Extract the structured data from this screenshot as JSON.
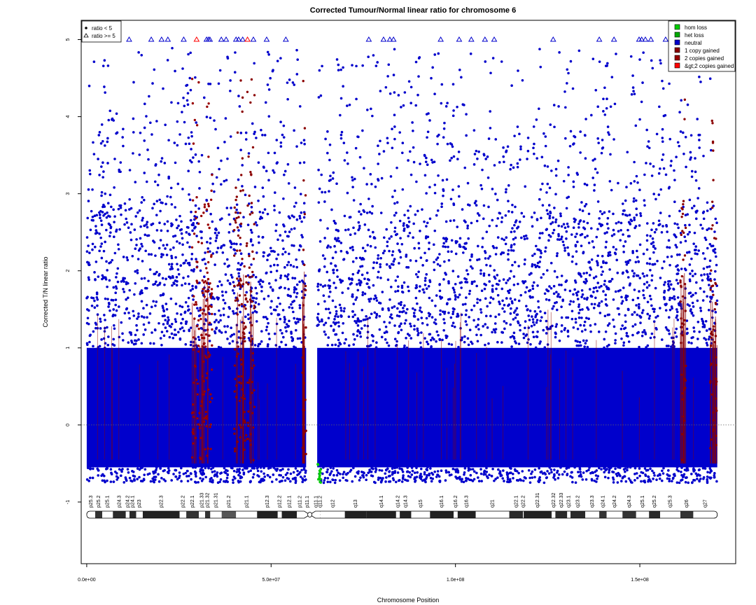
{
  "chart_data": {
    "type": "scatter",
    "title": "Corrected Tumour/Normal linear ratio for chromosome  6",
    "xlabel": "Chromosome Position",
    "ylabel": "Corrected T/N linear ratio",
    "xlim": [
      -1500000,
      176000000
    ],
    "ylim": [
      -1.8,
      5.25
    ],
    "x_ticks": [
      0,
      50000000,
      100000000,
      150000000
    ],
    "x_tick_labels": [
      "0.0e+00",
      "5.0e+07",
      "1.0e+08",
      "1.5e+08"
    ],
    "y_ticks": [
      -1,
      0,
      1,
      2,
      3,
      4,
      5
    ],
    "y_tick_labels": [
      "-1",
      "0",
      "1",
      "2",
      "3",
      "4",
      "5"
    ],
    "reference_line_y": 0,
    "chromosome_length": 171000000,
    "centromere": [
      59000000,
      62000000
    ],
    "data_gap": [
      59500000,
      62500000
    ],
    "cap_value": 5,
    "shape_legend": {
      "position": "top-left",
      "items": [
        {
          "symbol": "dot",
          "label": "ratio < 5"
        },
        {
          "symbol": "triangle",
          "label": "ratio >= 5"
        }
      ]
    },
    "color_legend": {
      "position": "top-right",
      "items": [
        {
          "label": "hom loss",
          "color": "#00cc00"
        },
        {
          "label": "het loss",
          "color": "#00aa00"
        },
        {
          "label": "neutral",
          "color": "#0000cc"
        },
        {
          "label": "1 copy gained",
          "color": "#8b0000"
        },
        {
          "label": "2 copies gained",
          "color": "#990000"
        },
        {
          "label": "&gt;2 copies gained",
          "color": "#ff0000"
        }
      ]
    },
    "gain_regions": [
      {
        "range": [
          28500000,
          34000000
        ],
        "level": "2 copies gained"
      },
      {
        "range": [
          40000000,
          45500000
        ],
        "level": "1 copy gained"
      },
      {
        "range": [
          58500000,
          59500000
        ],
        "level": "&gt;2 copies gained"
      },
      {
        "range": [
          161000000,
          162500000
        ],
        "level": "&gt;2 copies gained"
      },
      {
        "range": [
          169000000,
          171000000
        ],
        "level": "&gt;2 copies gained"
      }
    ],
    "loss_regions": [
      {
        "range": [
          62500000,
          63500000
        ],
        "level": "hom loss"
      }
    ],
    "capped_points_x": [
      0.5,
      2.0,
      2.8,
      3.4,
      11.5,
      17.5,
      20.3,
      22.0,
      26.3,
      29.8,
      32.5,
      33.0,
      33.4,
      36.5,
      37.8,
      40.5,
      41.2,
      42.3,
      43.6,
      45.2,
      48.8,
      54.0,
      76.5,
      80.5,
      82.2,
      83.2,
      96.0,
      101.0,
      104.3,
      108.0,
      110.5,
      126.5,
      139.0,
      143.0,
      149.8,
      150.5,
      151.5,
      153.0,
      157.0,
      158.5,
      159.0,
      160.5,
      162.0,
      164.5,
      166.0,
      167.5,
      168.5,
      170.5
    ],
    "capped_red_points_x": [
      29.8,
      43.6
    ],
    "bands": [
      {
        "label": "p25.3",
        "start": 0,
        "end": 2.3
      },
      {
        "label": "p25.2",
        "start": 2.3,
        "end": 4.2
      },
      {
        "label": "p25.1",
        "start": 4.2,
        "end": 7.1
      },
      {
        "label": "p24.3",
        "start": 7.1,
        "end": 10.6
      },
      {
        "label": "p24.2",
        "start": 10.6,
        "end": 11.6
      },
      {
        "label": "p24.1",
        "start": 11.6,
        "end": 13.4
      },
      {
        "label": "p23",
        "start": 13.4,
        "end": 15.2
      },
      {
        "label": "p22.3",
        "start": 15.2,
        "end": 25.2
      },
      {
        "label": "p22.2",
        "start": 25.2,
        "end": 27.0
      },
      {
        "label": "p22.1",
        "start": 27.0,
        "end": 30.4
      },
      {
        "label": "p21.33",
        "start": 30.4,
        "end": 32.1
      },
      {
        "label": "p21.32",
        "start": 32.1,
        "end": 33.5
      },
      {
        "label": "p21.31",
        "start": 33.5,
        "end": 36.6
      },
      {
        "label": "p21.2",
        "start": 36.6,
        "end": 40.5
      },
      {
        "label": "p21.1",
        "start": 40.5,
        "end": 46.2
      },
      {
        "label": "p12.3",
        "start": 46.2,
        "end": 51.8
      },
      {
        "label": "p12.2",
        "start": 51.8,
        "end": 52.9
      },
      {
        "label": "p12.1",
        "start": 52.9,
        "end": 57.0
      },
      {
        "label": "p11.2",
        "start": 57.0,
        "end": 58.7
      },
      {
        "label": "p11.1",
        "start": 58.7,
        "end": 61.0
      },
      {
        "label": "q11.1",
        "start": 61.0,
        "end": 63.3
      },
      {
        "label": "q11.2",
        "start": 63.3,
        "end": 63.4
      },
      {
        "label": "q12",
        "start": 63.4,
        "end": 70.0
      },
      {
        "label": "q13",
        "start": 70.0,
        "end": 75.9
      },
      {
        "label": "q14.1",
        "start": 75.9,
        "end": 83.9
      },
      {
        "label": "q14.2",
        "start": 83.9,
        "end": 84.9
      },
      {
        "label": "q14.3",
        "start": 84.9,
        "end": 88.0
      },
      {
        "label": "q15",
        "start": 88.0,
        "end": 93.1
      },
      {
        "label": "q16.1",
        "start": 93.1,
        "end": 99.5
      },
      {
        "label": "q16.2",
        "start": 99.5,
        "end": 100.6
      },
      {
        "label": "q16.3",
        "start": 100.6,
        "end": 105.5
      },
      {
        "label": "q21",
        "start": 105.5,
        "end": 114.6
      },
      {
        "label": "q22.1",
        "start": 114.6,
        "end": 118.3
      },
      {
        "label": "q22.2",
        "start": 118.3,
        "end": 118.5
      },
      {
        "label": "q22.31",
        "start": 118.5,
        "end": 126.1
      },
      {
        "label": "q22.32",
        "start": 126.1,
        "end": 127.1
      },
      {
        "label": "q22.33",
        "start": 127.1,
        "end": 130.3
      },
      {
        "label": "q23.1",
        "start": 130.3,
        "end": 131.2
      },
      {
        "label": "q23.2",
        "start": 131.2,
        "end": 135.2
      },
      {
        "label": "q23.3",
        "start": 135.2,
        "end": 139.0
      },
      {
        "label": "q24.1",
        "start": 139.0,
        "end": 141.0
      },
      {
        "label": "q24.2",
        "start": 141.0,
        "end": 145.3
      },
      {
        "label": "q24.3",
        "start": 145.3,
        "end": 149.0
      },
      {
        "label": "q25.1",
        "start": 149.0,
        "end": 152.5
      },
      {
        "label": "q25.2",
        "start": 152.5,
        "end": 155.5
      },
      {
        "label": "q25.3",
        "start": 155.5,
        "end": 161.0
      },
      {
        "label": "q26",
        "start": 161.0,
        "end": 164.5
      },
      {
        "label": "q27",
        "start": 164.5,
        "end": 171.0
      }
    ],
    "band_stain": [
      "gneg",
      "gpos50",
      "gneg",
      "gpos75",
      "gneg",
      "gpos75",
      "gneg",
      "gpos100",
      "gneg",
      "gpos50",
      "gneg",
      "gpos50",
      "gneg",
      "gpos25",
      "gneg",
      "gpos100",
      "gneg",
      "gpos100",
      "gneg",
      "acen",
      "acen",
      "gvar",
      "gneg",
      "gpos100",
      "gpos100",
      "gneg",
      "gpos100",
      "gneg",
      "gpos100",
      "gneg",
      "gpos100",
      "gneg",
      "gpos75",
      "gneg",
      "gpos100",
      "gneg",
      "gpos75",
      "gneg",
      "gpos75",
      "gneg",
      "gpos50",
      "gneg",
      "gpos50",
      "gneg",
      "gpos75",
      "gneg",
      "gpos50",
      "gneg"
    ]
  }
}
